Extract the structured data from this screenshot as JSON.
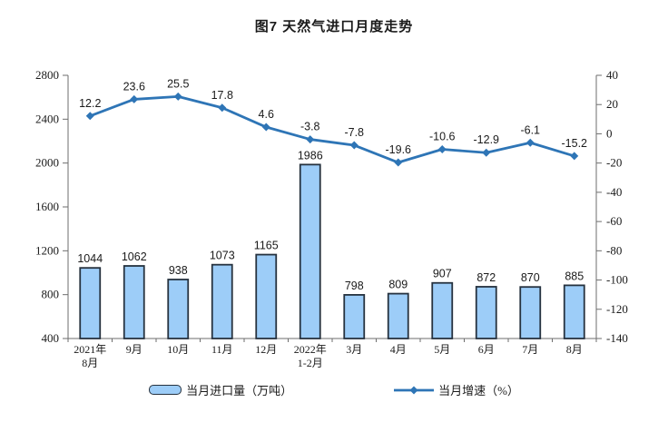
{
  "title": "图7 天然气进口月度走势",
  "colors": {
    "bar_fill": "#9DCDF8",
    "bar_stroke": "#26323f",
    "line": "#2E75B6",
    "axis": "#6e6e6e",
    "text": "#1a1a1a"
  },
  "legend": {
    "items": [
      {
        "label": "当月进口量（万吨）",
        "marker": "bar"
      },
      {
        "label": "当月增速（%）",
        "marker": "line"
      }
    ]
  },
  "chart_data": {
    "type": "bar+line",
    "title": "图7 天然气进口月度走势",
    "categories": [
      [
        "2021年",
        "8月"
      ],
      [
        "9月"
      ],
      [
        "10月"
      ],
      [
        "11月"
      ],
      [
        "12月"
      ],
      [
        "2022年",
        "1-2月"
      ],
      [
        "3月"
      ],
      [
        "4月"
      ],
      [
        "5月"
      ],
      [
        "6月"
      ],
      [
        "7月"
      ],
      [
        "8月"
      ]
    ],
    "series": [
      {
        "name": "当月进口量（万吨）",
        "type": "bar",
        "axis": "left",
        "values": [
          1044,
          1062,
          938,
          1073,
          1165,
          1986,
          798,
          809,
          907,
          872,
          870,
          885
        ]
      },
      {
        "name": "当月增速（%）",
        "type": "line",
        "axis": "right",
        "values": [
          12.2,
          23.6,
          25.5,
          17.8,
          4.6,
          -3.8,
          -7.8,
          -19.6,
          -10.6,
          -12.9,
          -6.1,
          -15.2
        ]
      }
    ],
    "left_axis": {
      "min": 400,
      "max": 2800,
      "step": 400,
      "ticks": [
        2800,
        2400,
        2000,
        1600,
        1200,
        800,
        400
      ]
    },
    "right_axis": {
      "min": -140,
      "max": 40,
      "step": 20,
      "ticks": [
        40,
        20,
        0,
        -20,
        -40,
        -60,
        -80,
        -100,
        -120,
        -140
      ]
    },
    "grid": false,
    "legend_position": "bottom"
  }
}
